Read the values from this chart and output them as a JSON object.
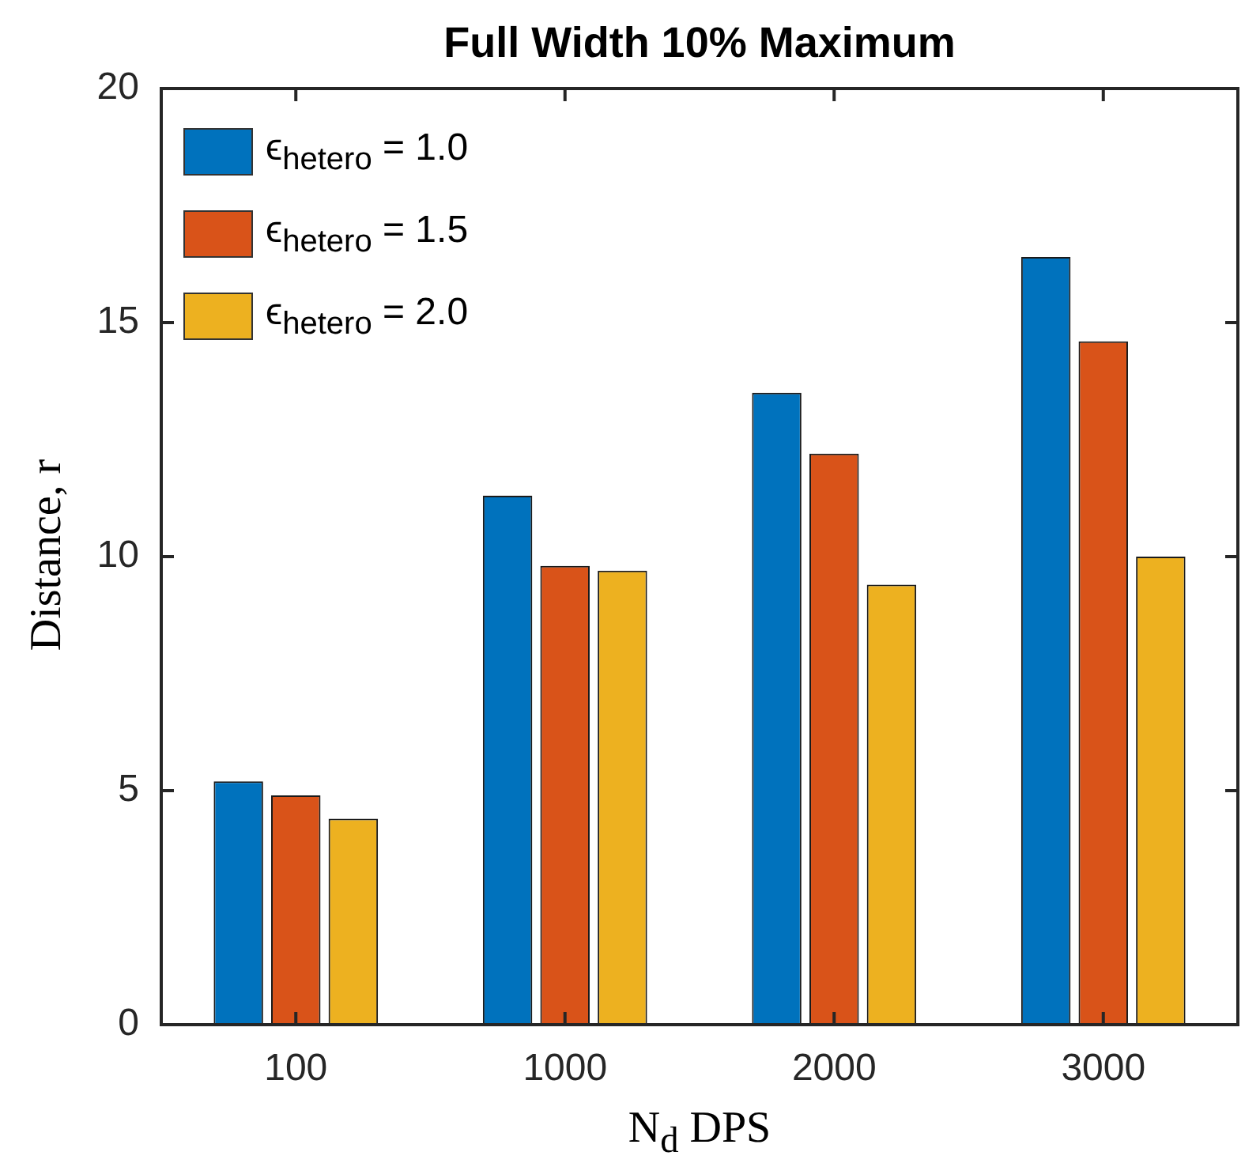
{
  "chart_data": {
    "type": "bar",
    "title": "Full Width 10% Maximum",
    "xlabel": "N$_{d}$ DPS",
    "ylabel": "Distance, r",
    "categories": [
      "100",
      "1000",
      "2000",
      "3000"
    ],
    "series": [
      {
        "name": "ϵ$_{hetero}$ = 1.0",
        "color": "#0072bd",
        "values": [
          5.2,
          11.3,
          13.5,
          16.4
        ]
      },
      {
        "name": "ϵ$_{hetero}$ = 1.5",
        "color": "#d95319",
        "values": [
          4.9,
          9.8,
          12.2,
          14.6
        ]
      },
      {
        "name": "ϵ$_{hetero}$ = 2.0",
        "color": "#edb120",
        "values": [
          4.4,
          9.7,
          9.4,
          10.0
        ]
      }
    ],
    "ylim": [
      0,
      20
    ],
    "yticks": [
      0,
      5,
      10,
      15,
      20
    ],
    "grid": false,
    "legend": "top left"
  }
}
